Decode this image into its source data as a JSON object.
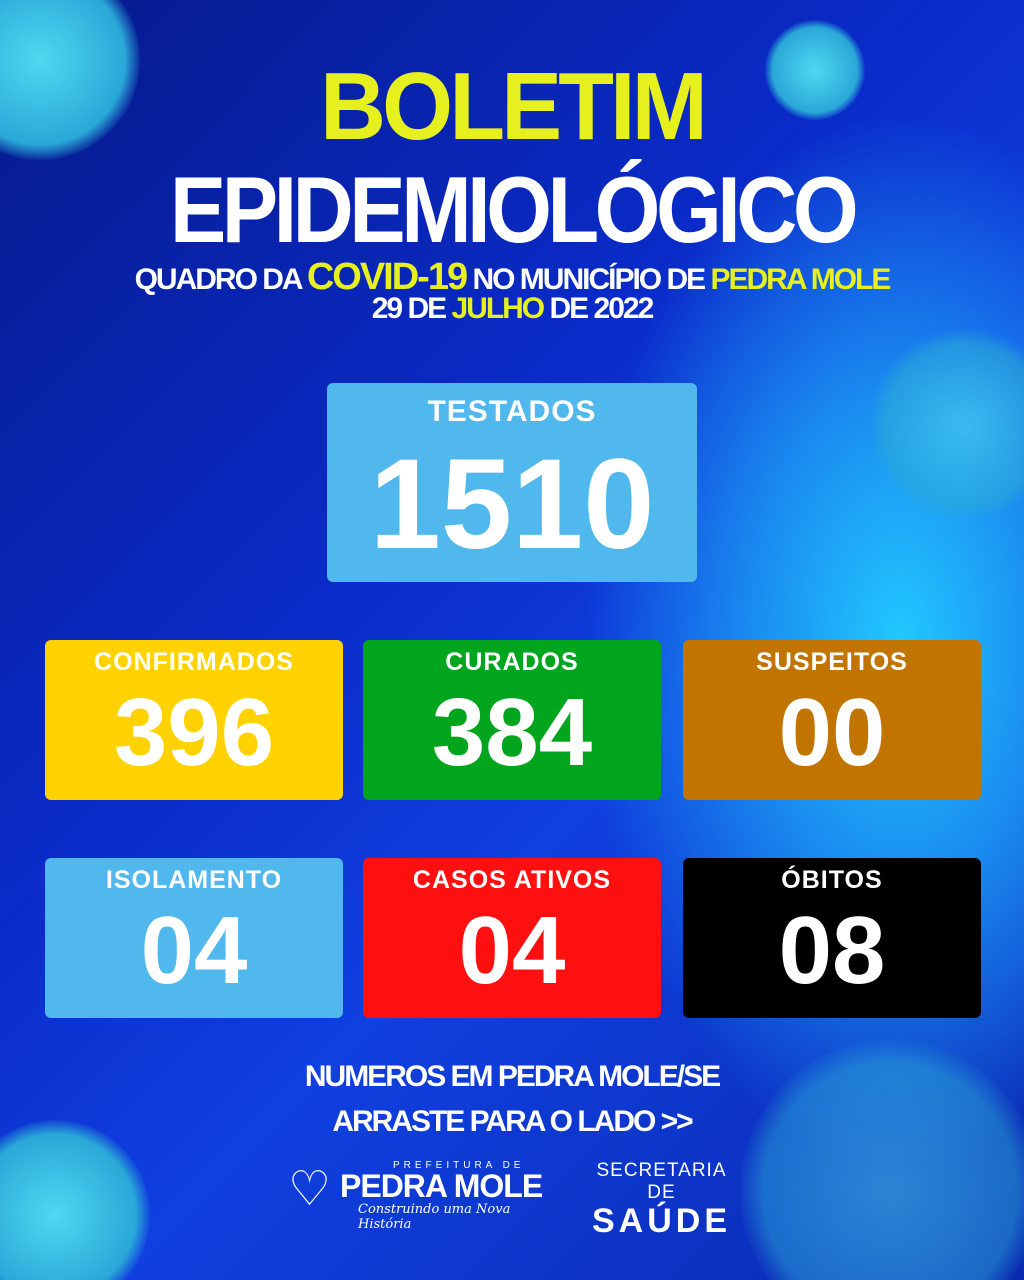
{
  "header": {
    "title1": "BOLETIM",
    "title2": "EPIDEMIOLÓGICO",
    "line1_a": "QUADRO DA",
    "line1_b": "COVID-19",
    "line1_c": "NO MUNICÍPIO DE",
    "line1_d": "PEDRA MOLE",
    "date_a": "29 DE",
    "date_b": "JULHO",
    "date_c": "DE 2022"
  },
  "testados": {
    "label": "TESTADOS",
    "value": "1510",
    "color": "#50b8ec"
  },
  "cards": [
    {
      "label": "CONFIRMADOS",
      "value": "396",
      "color": "#ffd200"
    },
    {
      "label": "CURADOS",
      "value": "384",
      "color": "#00a51e"
    },
    {
      "label": "SUSPEITOS",
      "value": "00",
      "color": "#c27400"
    },
    {
      "label": "ISOLAMENTO",
      "value": "04",
      "color": "#50b8ec"
    },
    {
      "label": "CASOS ATIVOS",
      "value": "04",
      "color": "#ff1010"
    },
    {
      "label": "ÓBITOS",
      "value": "08",
      "color": "#000000"
    }
  ],
  "footer": {
    "line1": "NUMEROS EM PEDRA MOLE/SE",
    "line2": "ARRASTE PARA O LADO >>",
    "logo": {
      "prefix": "PREFEITURA DE",
      "name": "PEDRA MOLE",
      "slogan": "Construindo uma Nova História"
    },
    "secretaria_a": "SECRETARIA DE",
    "secretaria_b": "SAÚDE"
  }
}
